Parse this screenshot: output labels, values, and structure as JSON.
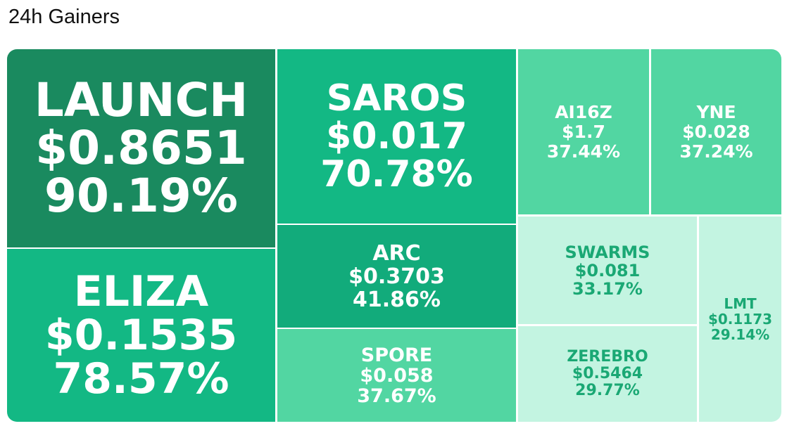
{
  "title": "24h Gainers",
  "tiles": [
    {
      "name": "LAUNCH",
      "price": "$0.8651",
      "change": "90.19%"
    },
    {
      "name": "ELIZA",
      "price": "$0.1535",
      "change": "78.57%"
    },
    {
      "name": "SAROS",
      "price": "$0.017",
      "change": "70.78%"
    },
    {
      "name": "ARC",
      "price": "$0.3703",
      "change": "41.86%"
    },
    {
      "name": "SPORE",
      "price": "$0.058",
      "change": "37.67%"
    },
    {
      "name": "AI16Z",
      "price": "$1.7",
      "change": "37.44%"
    },
    {
      "name": "YNE",
      "price": "$0.028",
      "change": "37.24%"
    },
    {
      "name": "SWARMS",
      "price": "$0.081",
      "change": "33.17%"
    },
    {
      "name": "ZEREBRO",
      "price": "$0.5464",
      "change": "29.77%"
    },
    {
      "name": "LMT",
      "price": "$0.1173",
      "change": "29.14%"
    }
  ]
}
